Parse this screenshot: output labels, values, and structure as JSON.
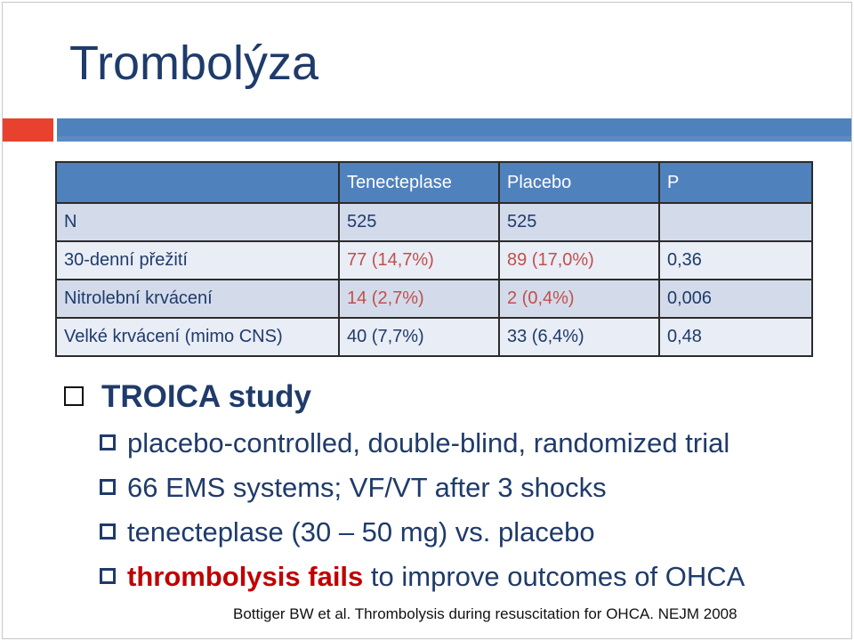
{
  "slide": {
    "title": "Trombolýza"
  },
  "table": {
    "headers": [
      "",
      "Tenecteplase",
      "Placebo",
      "P"
    ],
    "rows": [
      [
        "N",
        "525",
        "525",
        ""
      ],
      [
        "30-denní přežití",
        "77 (14,7%)",
        "89 (17,0%)",
        "0,36"
      ],
      [
        "Nitrolební krvácení",
        "14 (2,7%)",
        "2 (0,4%)",
        "0,006"
      ],
      [
        "Velké krvácení (mimo CNS)",
        "40 (7,7%)",
        "33 (6,4%)",
        "0,48"
      ]
    ]
  },
  "study": {
    "heading": "TROICA study",
    "bullets": [
      "placebo-controlled, double-blind, randomized trial",
      "66 EMS systems; VF/VT after 3 shocks",
      "tenecteplase (30 – 50 mg) vs. placebo"
    ],
    "last_bullet": {
      "highlight": "thrombolysis fails",
      "rest": " to improve outcomes of OHCA"
    }
  },
  "reference": "Bottiger BW et al. Thrombolysis during resuscitation for OHCA. NEJM 2008",
  "colors": {
    "title": "#1f3b6b",
    "accent_red": "#e8422f",
    "accent_blue": "#4f81bd",
    "highlight": "#c00000"
  }
}
